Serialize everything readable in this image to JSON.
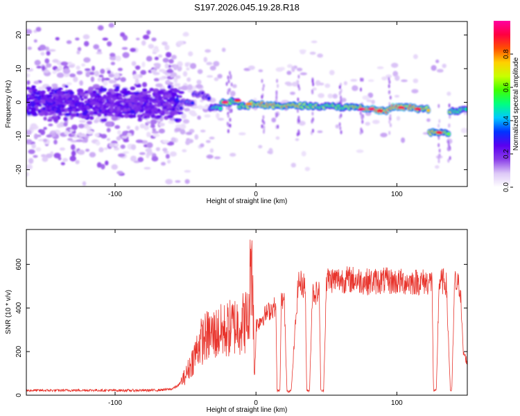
{
  "title": "S197.2026.045.19.28.R18",
  "chart_data": [
    {
      "type": "heatmap",
      "title": "S197.2026.045.19.28.R18",
      "xlabel": "Height of straight line (km)",
      "ylabel": "Frequency (Hz)",
      "xlim": [
        -163,
        150
      ],
      "ylim": [
        -25,
        24
      ],
      "x_ticks": [
        -100,
        0,
        100
      ],
      "x_tick_labels": [
        "-100",
        "0",
        "100"
      ],
      "y_ticks": [
        -20,
        -10,
        0,
        10,
        20
      ],
      "y_tick_labels": [
        "-20",
        "-10",
        "0",
        "10",
        "20"
      ],
      "colorbar": {
        "label": "Normalized spectral amplitude",
        "range": [
          0,
          1
        ],
        "ticks": [
          0.0,
          0.2,
          0.4,
          0.6,
          0.8
        ],
        "tick_labels": [
          "0.0",
          "0.2",
          "0.4",
          "0.6",
          "0.8"
        ],
        "colors": [
          "#ffffff",
          "#ddc8f7",
          "#8a3ee8",
          "#5a00f0",
          "#0033ff",
          "#00c8ff",
          "#00ff80",
          "#40ff00",
          "#c8ff00",
          "#ffd000",
          "#ff5000",
          "#ff0040",
          "#ff00a0"
        ]
      },
      "signal_track": [
        {
          "x": -163,
          "freq": 0,
          "amp": 0.25
        },
        {
          "x": -100,
          "freq": -0.5,
          "amp": 0.2
        },
        {
          "x": -60,
          "freq": -0.5,
          "amp": 0.2
        },
        {
          "x": -55,
          "freq": -1.5,
          "amp": 0.3
        },
        {
          "x": -50,
          "freq": 0,
          "amp": 0.35
        },
        {
          "x": -40,
          "freq": 2.5,
          "amp": 0.3
        },
        {
          "x": -35,
          "freq": 1.5,
          "amp": 0.3
        },
        {
          "x": -30,
          "freq": -1.5,
          "amp": 0.45
        },
        {
          "x": -20,
          "freq": 0,
          "amp": 0.7
        },
        {
          "x": -15,
          "freq": 0.5,
          "amp": 0.55
        },
        {
          "x": -10,
          "freq": -1.0,
          "amp": 0.6
        },
        {
          "x": 0,
          "freq": -0.5,
          "amp": 0.75
        },
        {
          "x": 10,
          "freq": -1.0,
          "amp": 0.8
        },
        {
          "x": 30,
          "freq": -1.0,
          "amp": 0.75
        },
        {
          "x": 50,
          "freq": -1.2,
          "amp": 0.6
        },
        {
          "x": 70,
          "freq": -1.5,
          "amp": 0.7
        },
        {
          "x": 80,
          "freq": -2.0,
          "amp": 0.85
        },
        {
          "x": 90,
          "freq": -2.5,
          "amp": 0.8
        },
        {
          "x": 100,
          "freq": -1.5,
          "amp": 0.9
        },
        {
          "x": 110,
          "freq": -1.5,
          "amp": 0.8
        },
        {
          "x": 120,
          "freq": -2.0,
          "amp": 0.7
        },
        {
          "x": 125,
          "freq": -9.0,
          "amp": 0.75
        },
        {
          "x": 135,
          "freq": -9.0,
          "amp": 0.7
        },
        {
          "x": 140,
          "freq": -2.5,
          "amp": 0.6
        },
        {
          "x": 150,
          "freq": -2.0,
          "amp": 0.5
        }
      ]
    },
    {
      "type": "line",
      "xlabel": "Height of straight line (km)",
      "ylabel": "SNR (10 * v/v)",
      "xlim": [
        -163,
        150
      ],
      "ylim": [
        0,
        760
      ],
      "x_ticks": [
        -100,
        0,
        100
      ],
      "x_tick_labels": [
        "-100",
        "0",
        "100"
      ],
      "y_ticks": [
        0,
        200,
        400,
        600
      ],
      "y_tick_labels": [
        "0",
        "200",
        "400",
        "600"
      ],
      "series": [
        {
          "name": "SNR",
          "color": "#e8342c",
          "x": [
            -163,
            -140,
            -120,
            -100,
            -80,
            -70,
            -60,
            -55,
            -50,
            -45,
            -40,
            -35,
            -30,
            -25,
            -20,
            -15,
            -10,
            -5,
            -3,
            -1,
            0,
            5,
            10,
            14,
            15,
            17,
            18,
            20,
            22,
            25,
            30,
            35,
            36,
            38,
            40,
            45,
            46,
            48,
            50,
            60,
            70,
            80,
            90,
            100,
            110,
            120,
            125,
            126,
            128,
            130,
            135,
            138,
            139,
            141,
            142,
            145,
            147,
            150
          ],
          "values": [
            22,
            22,
            23,
            22,
            22,
            23,
            28,
            45,
            90,
            160,
            240,
            270,
            280,
            290,
            300,
            320,
            330,
            350,
            740,
            60,
            320,
            360,
            390,
            410,
            20,
            20,
            430,
            440,
            20,
            20,
            520,
            500,
            20,
            20,
            470,
            470,
            20,
            20,
            530,
            530,
            530,
            520,
            525,
            520,
            520,
            520,
            520,
            20,
            20,
            520,
            520,
            20,
            20,
            520,
            510,
            500,
            200,
            150
          ]
        }
      ]
    }
  ]
}
